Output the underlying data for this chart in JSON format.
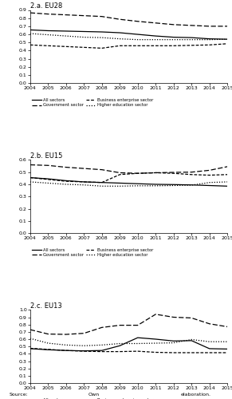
{
  "years": [
    2004,
    2005,
    2006,
    2007,
    2008,
    2009,
    2010,
    2011,
    2012,
    2013,
    2014,
    2015
  ],
  "eu28": {
    "title": "2.a. EU28",
    "ylim": [
      0.0,
      0.9
    ],
    "yticks": [
      0.0,
      0.1,
      0.2,
      0.3,
      0.4,
      0.5,
      0.6,
      0.7,
      0.8,
      0.9
    ],
    "all_sectors": [
      0.655,
      0.645,
      0.64,
      0.635,
      0.63,
      0.62,
      0.6,
      0.58,
      0.565,
      0.56,
      0.545,
      0.54
    ],
    "government": [
      0.865,
      0.85,
      0.84,
      0.83,
      0.82,
      0.785,
      0.76,
      0.74,
      0.72,
      0.71,
      0.7,
      0.7
    ],
    "business_enterprise": [
      0.47,
      0.46,
      0.45,
      0.44,
      0.43,
      0.46,
      0.46,
      0.46,
      0.46,
      0.465,
      0.47,
      0.485
    ],
    "higher_education": [
      0.61,
      0.595,
      0.58,
      0.565,
      0.56,
      0.545,
      0.535,
      0.535,
      0.535,
      0.535,
      0.535,
      0.54
    ]
  },
  "eu15": {
    "title": "2.b. EU15",
    "ylim": [
      0.0,
      0.6
    ],
    "yticks": [
      0.0,
      0.1,
      0.2,
      0.3,
      0.4,
      0.5,
      0.6
    ],
    "all_sectors": [
      0.455,
      0.445,
      0.43,
      0.42,
      0.415,
      0.41,
      0.405,
      0.4,
      0.398,
      0.395,
      0.39,
      0.385
    ],
    "government": [
      0.56,
      0.555,
      0.54,
      0.53,
      0.52,
      0.495,
      0.49,
      0.495,
      0.498,
      0.5,
      0.515,
      0.545
    ],
    "business_enterprise": [
      0.455,
      0.44,
      0.425,
      0.42,
      0.415,
      0.48,
      0.49,
      0.495,
      0.49,
      0.48,
      0.475,
      0.48
    ],
    "higher_education": [
      0.42,
      0.41,
      0.4,
      0.395,
      0.385,
      0.385,
      0.388,
      0.388,
      0.39,
      0.393,
      0.415,
      0.42
    ]
  },
  "eu13": {
    "title": "2.c. EU13",
    "ylim": [
      0.0,
      1.0
    ],
    "yticks": [
      0.0,
      0.1,
      0.2,
      0.3,
      0.4,
      0.5,
      0.6,
      0.7,
      0.8,
      0.9,
      1.0
    ],
    "all_sectors": [
      0.47,
      0.455,
      0.445,
      0.44,
      0.445,
      0.51,
      0.62,
      0.6,
      0.575,
      0.58,
      0.47,
      0.465
    ],
    "government": [
      0.73,
      0.67,
      0.665,
      0.68,
      0.76,
      0.79,
      0.79,
      0.94,
      0.9,
      0.89,
      0.81,
      0.77
    ],
    "business_enterprise": [
      0.475,
      0.46,
      0.445,
      0.435,
      0.43,
      0.43,
      0.435,
      0.42,
      0.415,
      0.415,
      0.415,
      0.415
    ],
    "higher_education": [
      0.61,
      0.545,
      0.52,
      0.51,
      0.52,
      0.54,
      0.54,
      0.545,
      0.55,
      0.595,
      0.565,
      0.565
    ]
  }
}
